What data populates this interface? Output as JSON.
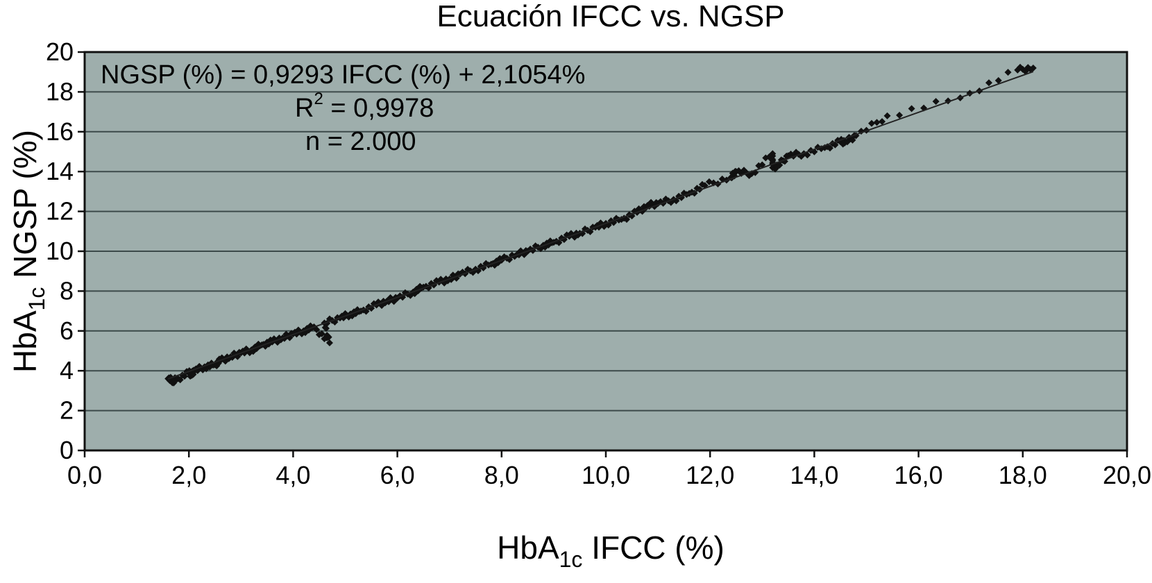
{
  "chart_data": {
    "type": "scatter",
    "title": "Ecuación IFCC vs. NGSP",
    "xlabel": {
      "prefix": "HbA",
      "sub": "1c",
      "suffix": " IFCC (%)"
    },
    "ylabel": {
      "prefix": "HbA",
      "sub": "1c",
      "suffix": " NGSP (%)"
    },
    "xlim": [
      0,
      20
    ],
    "ylim": [
      0,
      20
    ],
    "x_ticks": [
      "0,0",
      "2,0",
      "4,0",
      "6,0",
      "8,0",
      "10,0",
      "12,0",
      "14,0",
      "16,0",
      "18,0",
      "20,0"
    ],
    "y_ticks": [
      "0",
      "2",
      "4",
      "6",
      "8",
      "10",
      "12",
      "14",
      "16",
      "18",
      "20"
    ],
    "grid": "horizontal",
    "plot_background": "#9eaeac",
    "marker_color": "#111111",
    "trendline": {
      "slope": 0.9293,
      "intercept": 2.1054,
      "x_range": [
        1.6,
        18.2
      ]
    },
    "annotations": {
      "equation": "NGSP (%) = 0,9293 IFCC (%) + 2,1054%",
      "r2_prefix": "R",
      "r2_sup": "2",
      "r2_suffix": " = 0,9978",
      "n": "n = 2.000"
    },
    "points": [
      [
        1.6,
        3.6
      ],
      [
        1.7,
        3.5
      ],
      [
        1.75,
        3.55
      ],
      [
        2.0,
        3.9
      ],
      [
        2.05,
        3.8
      ],
      [
        2.1,
        4.0
      ],
      [
        2.3,
        4.2
      ],
      [
        2.5,
        4.3
      ],
      [
        2.6,
        4.5
      ],
      [
        2.8,
        4.7
      ],
      [
        3.0,
        4.9
      ],
      [
        3.2,
        5.05
      ],
      [
        3.4,
        5.3
      ],
      [
        3.6,
        5.45
      ],
      [
        3.8,
        5.65
      ],
      [
        4.0,
        5.85
      ],
      [
        4.2,
        6.0
      ],
      [
        4.4,
        6.2
      ],
      [
        4.7,
        5.4
      ],
      [
        4.6,
        6.4
      ],
      [
        4.9,
        6.65
      ],
      [
        5.1,
        6.85
      ],
      [
        5.3,
        7.0
      ],
      [
        5.6,
        7.3
      ],
      [
        5.8,
        7.5
      ],
      [
        6.0,
        7.65
      ],
      [
        6.3,
        7.95
      ],
      [
        6.5,
        8.2
      ],
      [
        6.8,
        8.45
      ],
      [
        7.0,
        8.6
      ],
      [
        7.2,
        8.85
      ],
      [
        7.5,
        9.1
      ],
      [
        7.8,
        9.35
      ],
      [
        8.0,
        9.55
      ],
      [
        8.3,
        9.85
      ],
      [
        8.5,
        10.0
      ],
      [
        8.8,
        10.3
      ],
      [
        9.0,
        10.45
      ],
      [
        9.3,
        10.75
      ],
      [
        9.5,
        10.9
      ],
      [
        9.8,
        11.2
      ],
      [
        10.0,
        11.4
      ],
      [
        10.3,
        11.6
      ],
      [
        10.6,
        11.95
      ],
      [
        10.8,
        12.3
      ],
      [
        11.0,
        12.4
      ],
      [
        11.3,
        12.6
      ],
      [
        11.6,
        12.9
      ],
      [
        11.9,
        13.3
      ],
      [
        12.4,
        13.7
      ],
      [
        12.5,
        14.0
      ],
      [
        12.8,
        13.9
      ],
      [
        13.2,
        14.9
      ],
      [
        13.2,
        14.2
      ],
      [
        13.3,
        14.3
      ],
      [
        13.5,
        14.8
      ],
      [
        13.8,
        14.9
      ],
      [
        14.2,
        15.2
      ],
      [
        14.5,
        15.5
      ],
      [
        14.6,
        15.5
      ],
      [
        14.8,
        15.8
      ],
      [
        15.4,
        16.8
      ],
      [
        16.8,
        17.7
      ],
      [
        17.9,
        19.1
      ],
      [
        18.2,
        19.2
      ]
    ]
  }
}
